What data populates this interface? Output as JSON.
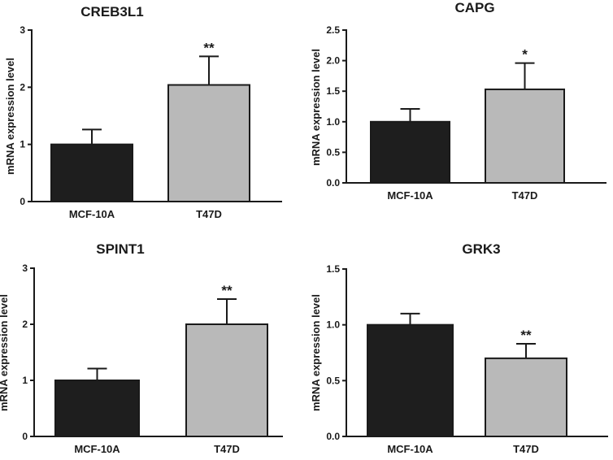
{
  "chart_data": [
    {
      "type": "bar",
      "title": "CREB3L1",
      "xlabel": "",
      "ylabel": "mRNA expression level",
      "categories": [
        "MCF-10A",
        "T47D"
      ],
      "values": [
        1.0,
        2.04
      ],
      "errors": [
        0.26,
        0.5
      ],
      "significance": [
        "",
        "**"
      ],
      "ylim": [
        0,
        3
      ],
      "yticks": [
        0,
        1,
        2,
        3
      ],
      "ytick_labels": [
        "0",
        "1",
        "2",
        "3"
      ],
      "colors": [
        "#1e1e1e",
        "#b9b9b9"
      ]
    },
    {
      "type": "bar",
      "title": "CAPG",
      "xlabel": "",
      "ylabel": "mRNA expression level",
      "categories": [
        "MCF-10A",
        "T47D"
      ],
      "values": [
        1.0,
        1.53
      ],
      "errors": [
        0.21,
        0.43
      ],
      "significance": [
        "",
        "*"
      ],
      "ylim": [
        0,
        2.5
      ],
      "yticks": [
        0,
        0.5,
        1,
        1.5,
        2,
        2.5
      ],
      "ytick_labels": [
        "0.0",
        "0.5",
        "1.0",
        "1.5",
        "2.0",
        "2.5"
      ],
      "colors": [
        "#1e1e1e",
        "#b9b9b9"
      ]
    },
    {
      "type": "bar",
      "title": "SPINT1",
      "xlabel": "",
      "ylabel": "mRNA expression level",
      "categories": [
        "MCF-10A",
        "T47D"
      ],
      "values": [
        1.0,
        2.0
      ],
      "errors": [
        0.21,
        0.45
      ],
      "significance": [
        "",
        "**"
      ],
      "ylim": [
        0,
        3
      ],
      "yticks": [
        0,
        1,
        2,
        3
      ],
      "ytick_labels": [
        "0",
        "1",
        "2",
        "3"
      ],
      "colors": [
        "#1e1e1e",
        "#b9b9b9"
      ]
    },
    {
      "type": "bar",
      "title": "GRK3",
      "xlabel": "",
      "ylabel": "mRNA expression level",
      "categories": [
        "MCF-10A",
        "T47D"
      ],
      "values": [
        1.0,
        0.7
      ],
      "errors": [
        0.1,
        0.13
      ],
      "significance": [
        "",
        "**"
      ],
      "ylim": [
        0,
        1.5
      ],
      "yticks": [
        0,
        0.5,
        1,
        1.5
      ],
      "ytick_labels": [
        "0.0",
        "0.5",
        "1.0",
        "1.5"
      ],
      "colors": [
        "#1e1e1e",
        "#b9b9b9"
      ]
    }
  ]
}
